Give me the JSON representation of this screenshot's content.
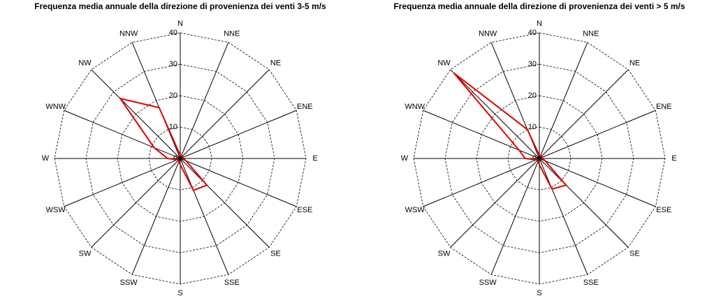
{
  "chart_data": [
    {
      "type": "radar",
      "title": "Frequenza media annuale della direzione di provenienza dei venti 3-5 m/s",
      "categories": [
        "N",
        "NNE",
        "NE",
        "ENE",
        "E",
        "ESE",
        "SE",
        "SSE",
        "S",
        "SSW",
        "SW",
        "WSW",
        "W",
        "WNW",
        "NW",
        "NNW"
      ],
      "series": [
        {
          "color": "#e00000",
          "values": [
            1,
            1,
            1,
            1,
            1,
            2,
            12,
            11,
            2,
            1,
            1,
            1,
            4,
            9,
            27,
            17.5
          ]
        }
      ],
      "rlim": [
        0,
        40
      ],
      "rticks": [
        0,
        10,
        20,
        30,
        40
      ]
    },
    {
      "type": "radar",
      "title": "Frequenza media annuale della direzione di provenienza dei venti > 5 m/s",
      "categories": [
        "N",
        "NNE",
        "NE",
        "ENE",
        "E",
        "ESE",
        "SE",
        "SSE",
        "S",
        "SSW",
        "SW",
        "WSW",
        "W",
        "WNW",
        "NW",
        "NNW"
      ],
      "series": [
        {
          "color": "#e00000",
          "values": [
            1,
            1,
            1,
            1,
            1,
            2,
            12,
            10.5,
            2,
            1,
            1,
            1,
            4.5,
            7,
            38.5,
            10
          ]
        }
      ],
      "rlim": [
        0,
        40
      ],
      "rticks": [
        0,
        10,
        20,
        30,
        40
      ]
    }
  ]
}
